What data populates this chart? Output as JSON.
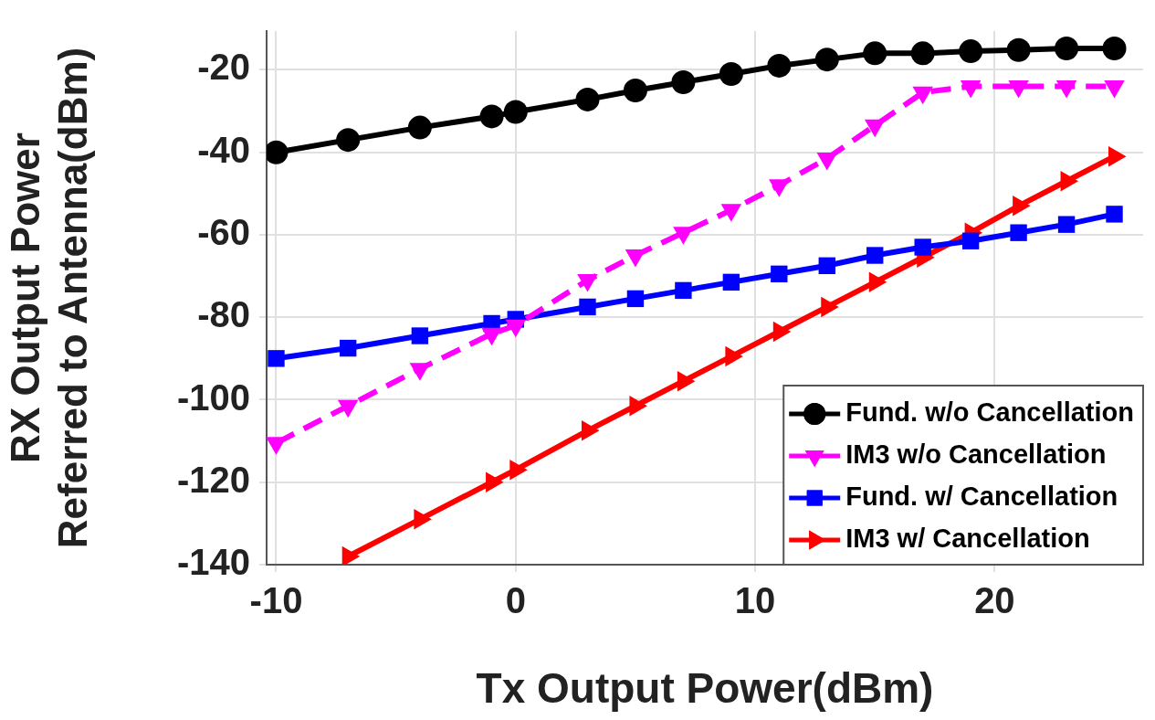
{
  "chart_data": {
    "type": "line",
    "xlabel": "Tx Output Power(dBm)",
    "ylabel": "RX Output Power\nReferred to Antenna(dBm)",
    "x": [
      -10,
      -7,
      -4,
      -1,
      0,
      3,
      5,
      7,
      9,
      11,
      13,
      15,
      17,
      19,
      21,
      23,
      25
    ],
    "xlim": [
      -10.4,
      26.2
    ],
    "xticks": [
      -10,
      0,
      10,
      20
    ],
    "ylim": [
      -140,
      -10.6
    ],
    "yticks": [
      -140,
      -120,
      -100,
      -80,
      -60,
      -40,
      -20
    ],
    "grid": true,
    "legend": "bottom right",
    "series": [
      {
        "name": "Fund. w/o Cancellation",
        "color": "#000000",
        "marker": "circle",
        "line_style": "solid",
        "values": [
          -40,
          -37,
          -34,
          -31.3,
          -30.2,
          -27.2,
          -25,
          -23,
          -21,
          -19,
          -17.5,
          -16,
          -16,
          -15.5,
          -15.2,
          -14.8,
          -14.8
        ]
      },
      {
        "name": "IM3 w/o Cancellation",
        "color": "#ff00ff",
        "marker": "triangle_down",
        "line_style": "dashed",
        "values": [
          -110.5,
          -101.5,
          -92.5,
          -84,
          -82,
          -71,
          -65,
          -59.5,
          -54,
          -48,
          -41.5,
          -33.5,
          -25.5,
          -24,
          -24,
          -24,
          -24
        ]
      },
      {
        "name": "Fund. w/ Cancellation",
        "color": "#0000ff",
        "marker": "square",
        "line_style": "solid",
        "values": [
          -90,
          -87.5,
          -84.5,
          -81.5,
          -80.5,
          -77.5,
          -75.5,
          -73.5,
          -71.5,
          -69.5,
          -67.5,
          -65,
          -63,
          -61.5,
          -59.5,
          -57.5,
          -55
        ]
      },
      {
        "name": "IM3 w/ Cancellation",
        "color": "#ff0000",
        "marker": "triangle_right",
        "line_style": "solid",
        "values": [
          null,
          -138,
          -129,
          -120,
          -117,
          -107.5,
          -101.5,
          -95.5,
          -89.5,
          -83.5,
          -77.5,
          -71.5,
          -65.5,
          -59.5,
          -53,
          -47,
          -41
        ]
      }
    ]
  }
}
